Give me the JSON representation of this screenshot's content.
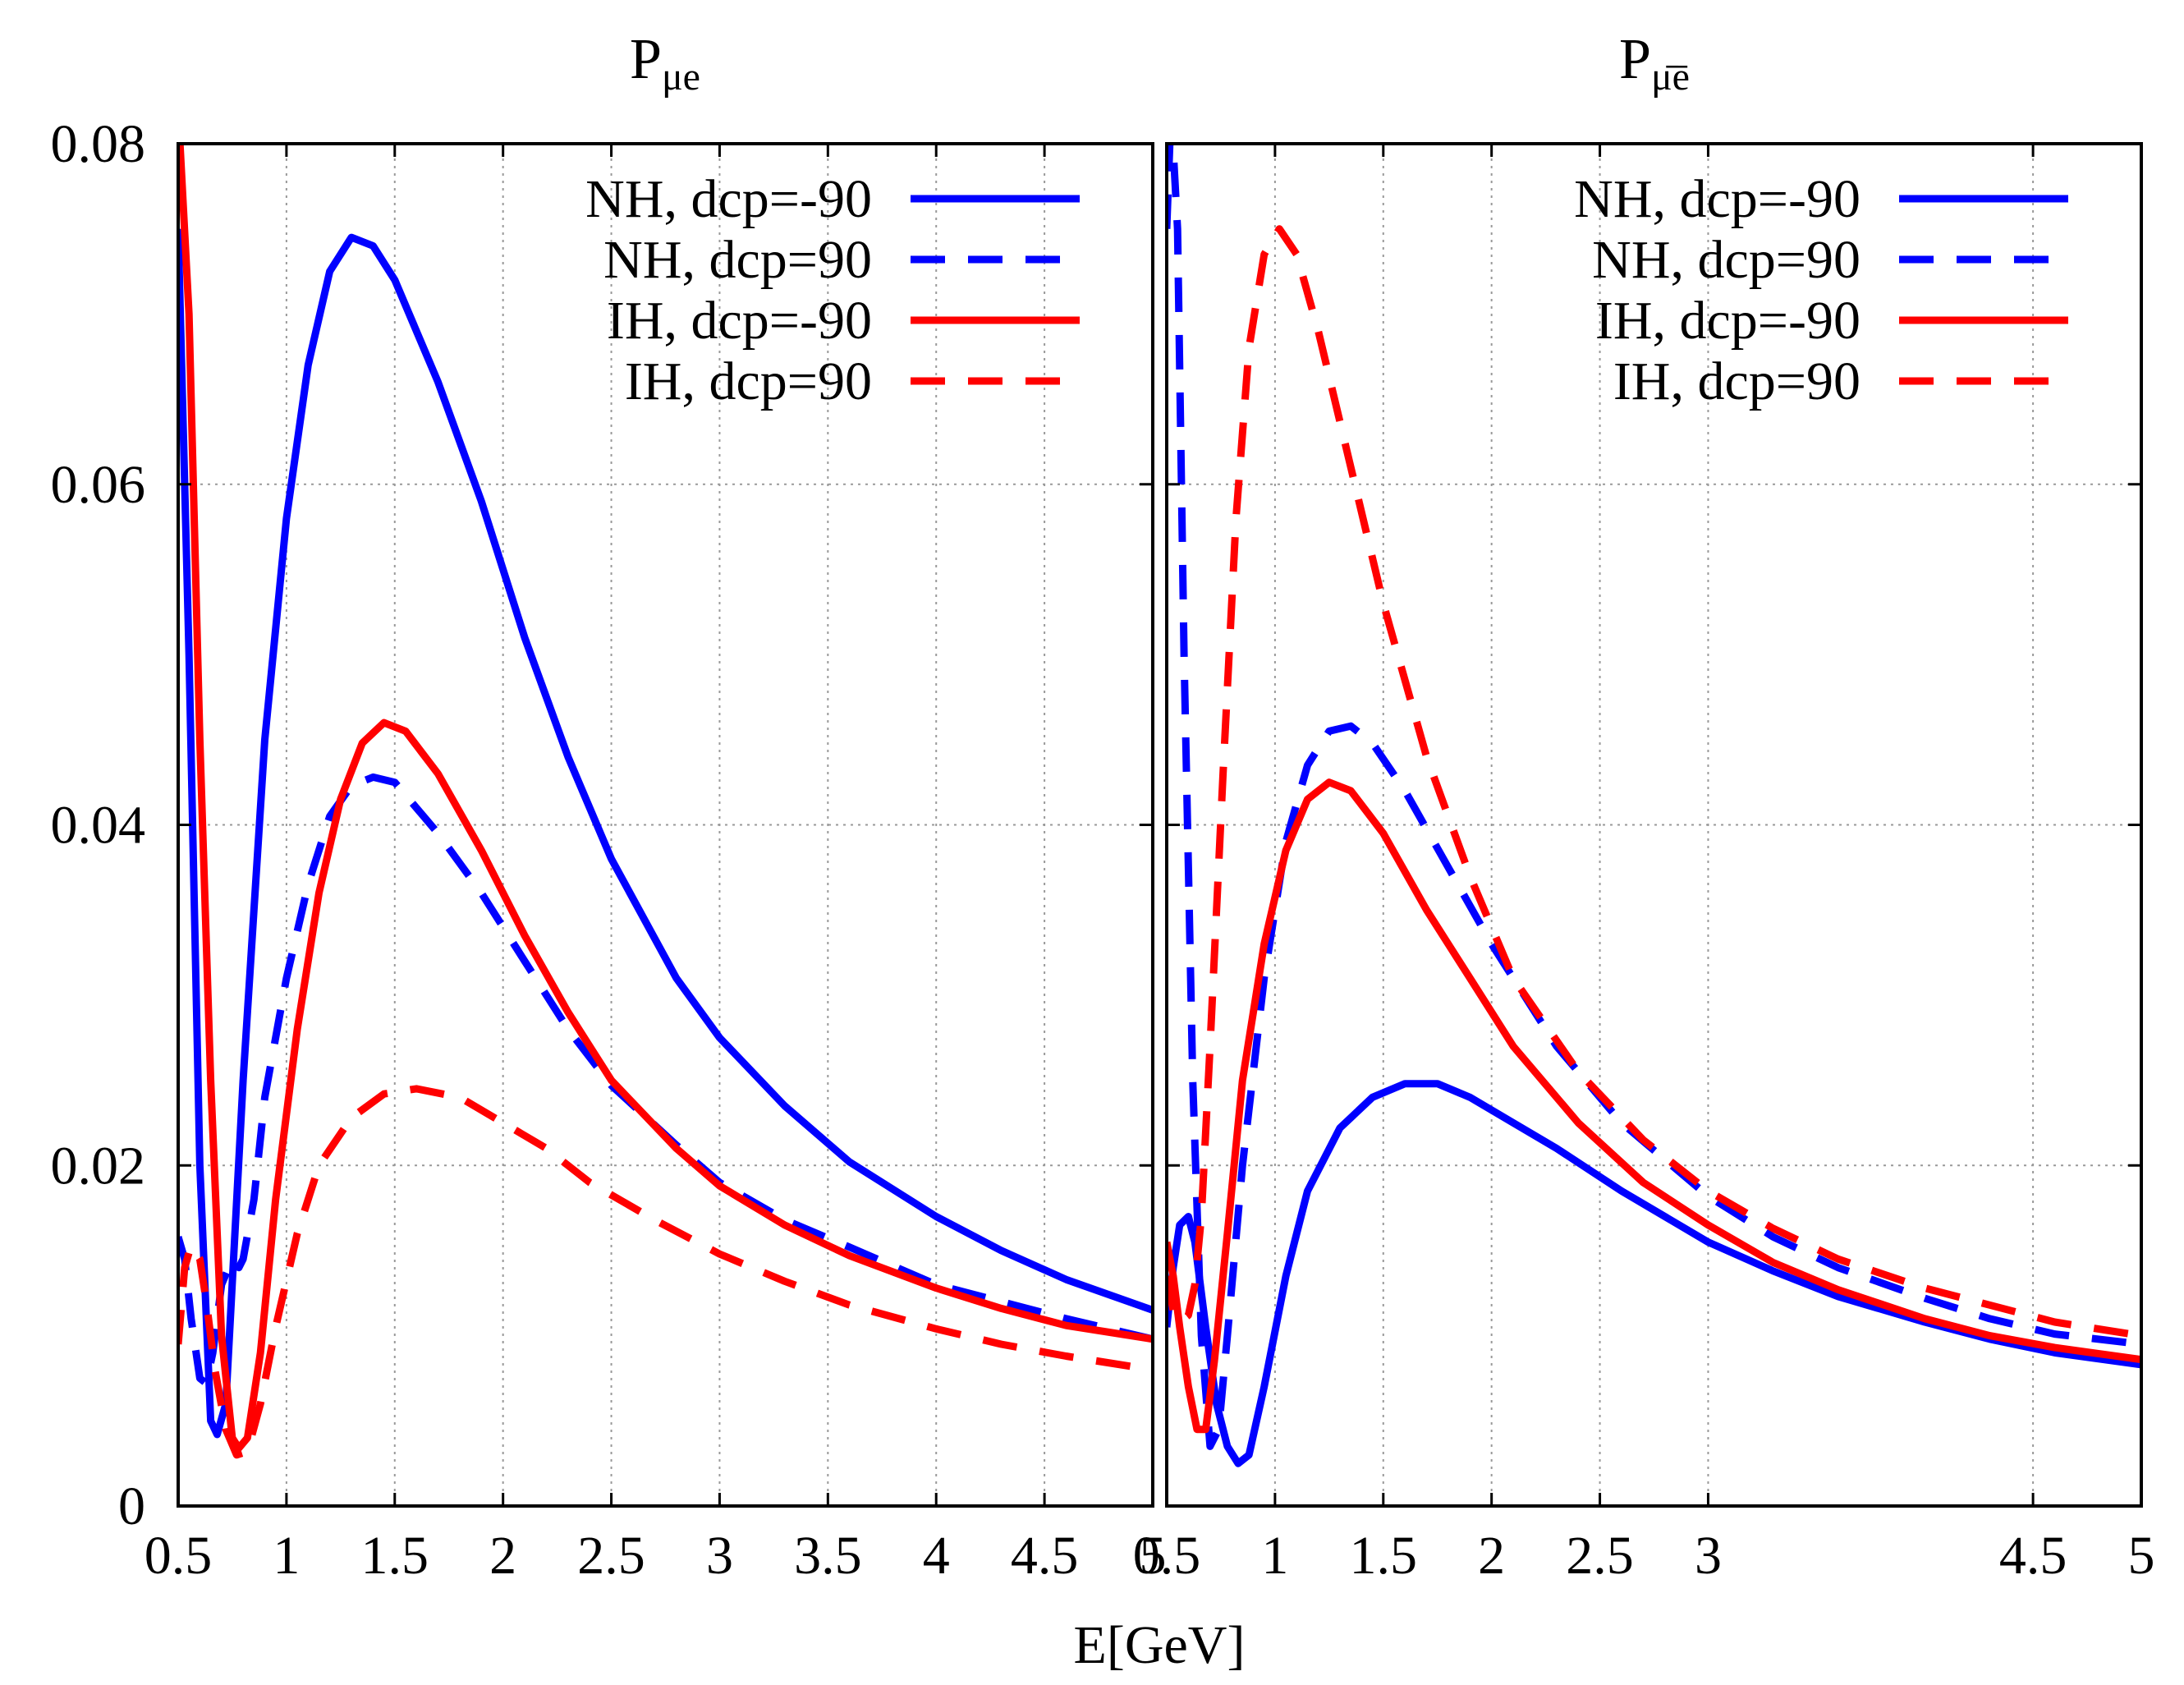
{
  "chart_data": {
    "type": "line",
    "xlabel": "E[GeV]",
    "ylim": [
      0,
      0.08
    ],
    "y_ticks": [
      "0",
      "0.02",
      "0.04",
      "0.06",
      "0.08"
    ],
    "legend_placement": "top-right",
    "grid": true,
    "panels": [
      {
        "title_main": "P",
        "title_sub": "μe",
        "xlim": [
          0.5,
          5
        ],
        "x_ticks": [
          "0.5",
          "1",
          "1.5",
          "2",
          "2.5",
          "3",
          "3.5",
          "4",
          "4.5",
          "5"
        ],
        "x_tick_values": [
          0.5,
          1,
          1.5,
          2,
          2.5,
          3,
          3.5,
          4,
          4.5,
          5
        ],
        "series": [
          {
            "name": "NH, dcp=-90",
            "color": "#0000ff",
            "dash": "solid",
            "points": [
              [
                0.5,
                0.075
              ],
              [
                0.55,
                0.05
              ],
              [
                0.6,
                0.02
              ],
              [
                0.65,
                0.005
              ],
              [
                0.68,
                0.0042
              ],
              [
                0.72,
                0.006
              ],
              [
                0.8,
                0.025
              ],
              [
                0.9,
                0.045
              ],
              [
                1.0,
                0.058
              ],
              [
                1.1,
                0.067
              ],
              [
                1.2,
                0.0725
              ],
              [
                1.3,
                0.0745
              ],
              [
                1.4,
                0.074
              ],
              [
                1.5,
                0.072
              ],
              [
                1.7,
                0.066
              ],
              [
                1.9,
                0.059
              ],
              [
                2.1,
                0.051
              ],
              [
                2.3,
                0.044
              ],
              [
                2.5,
                0.038
              ],
              [
                2.8,
                0.031
              ],
              [
                3.0,
                0.0275
              ],
              [
                3.3,
                0.0235
              ],
              [
                3.6,
                0.0202
              ],
              [
                4.0,
                0.017
              ],
              [
                4.3,
                0.015
              ],
              [
                4.6,
                0.0133
              ],
              [
                5.0,
                0.0115
              ]
            ]
          },
          {
            "name": "NH, dcp=90",
            "color": "#0000ff",
            "dash": "dashed",
            "points": [
              [
                0.5,
                0.0158
              ],
              [
                0.53,
                0.0145
              ],
              [
                0.56,
                0.011
              ],
              [
                0.6,
                0.0075
              ],
              [
                0.63,
                0.0072
              ],
              [
                0.66,
                0.009
              ],
              [
                0.7,
                0.013
              ],
              [
                0.75,
                0.0145
              ],
              [
                0.78,
                0.014
              ],
              [
                0.8,
                0.0145
              ],
              [
                0.85,
                0.018
              ],
              [
                0.9,
                0.024
              ],
              [
                1.0,
                0.031
              ],
              [
                1.1,
                0.0365
              ],
              [
                1.2,
                0.0405
              ],
              [
                1.3,
                0.0423
              ],
              [
                1.4,
                0.0428
              ],
              [
                1.5,
                0.0425
              ],
              [
                1.7,
                0.0395
              ],
              [
                1.9,
                0.036
              ],
              [
                2.1,
                0.032
              ],
              [
                2.3,
                0.028
              ],
              [
                2.5,
                0.0247
              ],
              [
                2.8,
                0.0212
              ],
              [
                3.0,
                0.019
              ],
              [
                3.3,
                0.0168
              ],
              [
                3.6,
                0.0152
              ],
              [
                4.0,
                0.013
              ],
              [
                4.3,
                0.012
              ],
              [
                4.6,
                0.011
              ],
              [
                5.0,
                0.0098
              ]
            ]
          },
          {
            "name": "IH, dcp=-90",
            "color": "#ff0000",
            "dash": "solid",
            "points": [
              [
                0.5,
                0.082
              ],
              [
                0.55,
                0.07
              ],
              [
                0.6,
                0.045
              ],
              [
                0.65,
                0.025
              ],
              [
                0.7,
                0.01
              ],
              [
                0.75,
                0.004
              ],
              [
                0.78,
                0.0034
              ],
              [
                0.82,
                0.004
              ],
              [
                0.88,
                0.009
              ],
              [
                0.95,
                0.018
              ],
              [
                1.05,
                0.028
              ],
              [
                1.15,
                0.036
              ],
              [
                1.25,
                0.0415
              ],
              [
                1.35,
                0.0448
              ],
              [
                1.45,
                0.046
              ],
              [
                1.55,
                0.0455
              ],
              [
                1.7,
                0.043
              ],
              [
                1.9,
                0.0385
              ],
              [
                2.1,
                0.0335
              ],
              [
                2.3,
                0.029
              ],
              [
                2.5,
                0.025
              ],
              [
                2.8,
                0.021
              ],
              [
                3.0,
                0.0188
              ],
              [
                3.3,
                0.0165
              ],
              [
                3.6,
                0.0147
              ],
              [
                4.0,
                0.0128
              ],
              [
                4.3,
                0.0116
              ],
              [
                4.6,
                0.0106
              ],
              [
                5.0,
                0.0098
              ]
            ]
          },
          {
            "name": "IH, dcp=90",
            "color": "#ff0000",
            "dash": "dashed",
            "points": [
              [
                0.5,
                0.0095
              ],
              [
                0.53,
                0.014
              ],
              [
                0.56,
                0.0153
              ],
              [
                0.6,
                0.0145
              ],
              [
                0.63,
                0.012
              ],
              [
                0.67,
                0.008
              ],
              [
                0.72,
                0.0045
              ],
              [
                0.77,
                0.003
              ],
              [
                0.82,
                0.0032
              ],
              [
                0.88,
                0.006
              ],
              [
                0.95,
                0.0105
              ],
              [
                1.05,
                0.016
              ],
              [
                1.15,
                0.02
              ],
              [
                1.3,
                0.0228
              ],
              [
                1.45,
                0.0242
              ],
              [
                1.6,
                0.0245
              ],
              [
                1.8,
                0.024
              ],
              [
                2.0,
                0.0225
              ],
              [
                2.2,
                0.021
              ],
              [
                2.4,
                0.019
              ],
              [
                2.7,
                0.0168
              ],
              [
                3.0,
                0.0148
              ],
              [
                3.3,
                0.0132
              ],
              [
                3.6,
                0.0118
              ],
              [
                4.0,
                0.0104
              ],
              [
                4.3,
                0.0095
              ],
              [
                4.6,
                0.0088
              ],
              [
                5.0,
                0.008
              ]
            ]
          }
        ]
      },
      {
        "title_main": "P",
        "title_sub": "μ̄ē",
        "xlim": [
          0.5,
          5
        ],
        "x_ticks": [
          "0.5",
          "1",
          "1.5",
          "2",
          "2.5",
          "3",
          "4.5",
          "5"
        ],
        "x_tick_values": [
          0.5,
          1,
          1.5,
          2,
          2.5,
          3,
          4.5,
          5
        ],
        "series": [
          {
            "name": "NH, dcp=-90",
            "color": "#0000ff",
            "dash": "solid",
            "points": [
              [
                0.5,
                0.0105
              ],
              [
                0.53,
                0.014
              ],
              [
                0.56,
                0.0165
              ],
              [
                0.6,
                0.017
              ],
              [
                0.63,
                0.0155
              ],
              [
                0.68,
                0.0105
              ],
              [
                0.73,
                0.006
              ],
              [
                0.78,
                0.0035
              ],
              [
                0.83,
                0.0025
              ],
              [
                0.88,
                0.003
              ],
              [
                0.95,
                0.007
              ],
              [
                1.05,
                0.0135
              ],
              [
                1.15,
                0.0185
              ],
              [
                1.3,
                0.0222
              ],
              [
                1.45,
                0.024
              ],
              [
                1.6,
                0.0248
              ],
              [
                1.75,
                0.0248
              ],
              [
                1.9,
                0.024
              ],
              [
                2.1,
                0.0225
              ],
              [
                2.3,
                0.021
              ],
              [
                2.6,
                0.0185
              ],
              [
                3.0,
                0.0155
              ],
              [
                3.3,
                0.0138
              ],
              [
                3.6,
                0.0123
              ],
              [
                4.0,
                0.0108
              ],
              [
                4.3,
                0.0098
              ],
              [
                4.6,
                0.009
              ],
              [
                5.0,
                0.0083
              ]
            ]
          },
          {
            "name": "NH, dcp=90",
            "color": "#0000ff",
            "dash": "dashed",
            "points": [
              [
                0.5,
                0.075
              ],
              [
                0.52,
                0.082
              ],
              [
                0.55,
                0.075
              ],
              [
                0.58,
                0.05
              ],
              [
                0.62,
                0.025
              ],
              [
                0.66,
                0.01
              ],
              [
                0.7,
                0.0035
              ],
              [
                0.74,
                0.0045
              ],
              [
                0.78,
                0.01
              ],
              [
                0.85,
                0.02
              ],
              [
                0.95,
                0.031
              ],
              [
                1.05,
                0.039
              ],
              [
                1.15,
                0.0435
              ],
              [
                1.25,
                0.0455
              ],
              [
                1.35,
                0.0458
              ],
              [
                1.45,
                0.0448
              ],
              [
                1.6,
                0.042
              ],
              [
                1.8,
                0.0375
              ],
              [
                2.0,
                0.033
              ],
              [
                2.3,
                0.027
              ],
              [
                2.6,
                0.0225
              ],
              [
                3.0,
                0.0182
              ],
              [
                3.3,
                0.0158
              ],
              [
                3.6,
                0.014
              ],
              [
                4.0,
                0.0122
              ],
              [
                4.3,
                0.011
              ],
              [
                4.6,
                0.0101
              ],
              [
                5.0,
                0.0095
              ]
            ]
          },
          {
            "name": "IH, dcp=-90",
            "color": "#ff0000",
            "dash": "solid",
            "points": [
              [
                0.5,
                0.0155
              ],
              [
                0.53,
                0.0135
              ],
              [
                0.56,
                0.0105
              ],
              [
                0.6,
                0.007
              ],
              [
                0.64,
                0.0045
              ],
              [
                0.68,
                0.0045
              ],
              [
                0.72,
                0.0085
              ],
              [
                0.78,
                0.016
              ],
              [
                0.85,
                0.025
              ],
              [
                0.95,
                0.033
              ],
              [
                1.05,
                0.0385
              ],
              [
                1.15,
                0.0415
              ],
              [
                1.25,
                0.0425
              ],
              [
                1.35,
                0.042
              ],
              [
                1.5,
                0.0395
              ],
              [
                1.7,
                0.035
              ],
              [
                1.9,
                0.031
              ],
              [
                2.1,
                0.027
              ],
              [
                2.4,
                0.0225
              ],
              [
                2.7,
                0.019
              ],
              [
                3.0,
                0.0165
              ],
              [
                3.3,
                0.0143
              ],
              [
                3.6,
                0.0127
              ],
              [
                4.0,
                0.011
              ],
              [
                4.3,
                0.01
              ],
              [
                4.6,
                0.0093
              ],
              [
                5.0,
                0.0086
              ]
            ]
          },
          {
            "name": "IH, dcp=90",
            "color": "#ff0000",
            "dash": "dashed",
            "points": [
              [
                0.5,
                0.0135
              ],
              [
                0.53,
                0.0115
              ],
              [
                0.56,
                0.0108
              ],
              [
                0.6,
                0.0112
              ],
              [
                0.63,
                0.013
              ],
              [
                0.66,
                0.017
              ],
              [
                0.7,
                0.027
              ],
              [
                0.76,
                0.043
              ],
              [
                0.82,
                0.058
              ],
              [
                0.88,
                0.068
              ],
              [
                0.95,
                0.0735
              ],
              [
                1.02,
                0.075
              ],
              [
                1.1,
                0.0735
              ],
              [
                1.2,
                0.069
              ],
              [
                1.35,
                0.061
              ],
              [
                1.5,
                0.053
              ],
              [
                1.7,
                0.044
              ],
              [
                1.9,
                0.037
              ],
              [
                2.1,
                0.031
              ],
              [
                2.4,
                0.0255
              ],
              [
                2.7,
                0.0215
              ],
              [
                3.0,
                0.0185
              ],
              [
                3.3,
                0.0163
              ],
              [
                3.6,
                0.0145
              ],
              [
                4.0,
                0.0128
              ],
              [
                4.3,
                0.0118
              ],
              [
                4.6,
                0.0108
              ],
              [
                5.0,
                0.01
              ]
            ]
          }
        ]
      }
    ]
  }
}
